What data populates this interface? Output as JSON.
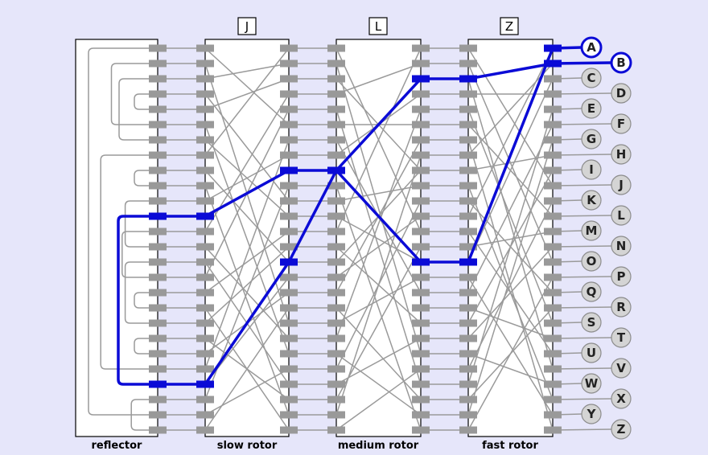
{
  "labels": {
    "reflector": "reflector",
    "slow_rotor": "slow rotor",
    "medium_rotor": "medium rotor",
    "fast_rotor": "fast rotor"
  },
  "windows": {
    "slow": "J",
    "medium": "L",
    "fast": "Z"
  },
  "letters": [
    "A",
    "B",
    "C",
    "D",
    "E",
    "F",
    "G",
    "H",
    "I",
    "J",
    "K",
    "L",
    "M",
    "N",
    "O",
    "P",
    "Q",
    "R",
    "S",
    "T",
    "U",
    "V",
    "W",
    "X",
    "Y",
    "Z"
  ],
  "active_keys": [
    "A",
    "B"
  ],
  "colors": {
    "background": "#e6e6fa",
    "signal_path": "#0b0bd6",
    "wire": "#9a9a9a",
    "pin": "#999999",
    "key_fill": "#d4d4d4"
  },
  "signal_trace": {
    "fast_rotor": [
      [
        0,
        14
      ],
      [
        1,
        2
      ]
    ],
    "medium_rotor": [
      [
        14,
        8
      ],
      [
        2,
        8
      ]
    ],
    "slow_rotor": [
      [
        14,
        22
      ],
      [
        8,
        11
      ]
    ],
    "reflector": [
      11,
      22
    ]
  }
}
